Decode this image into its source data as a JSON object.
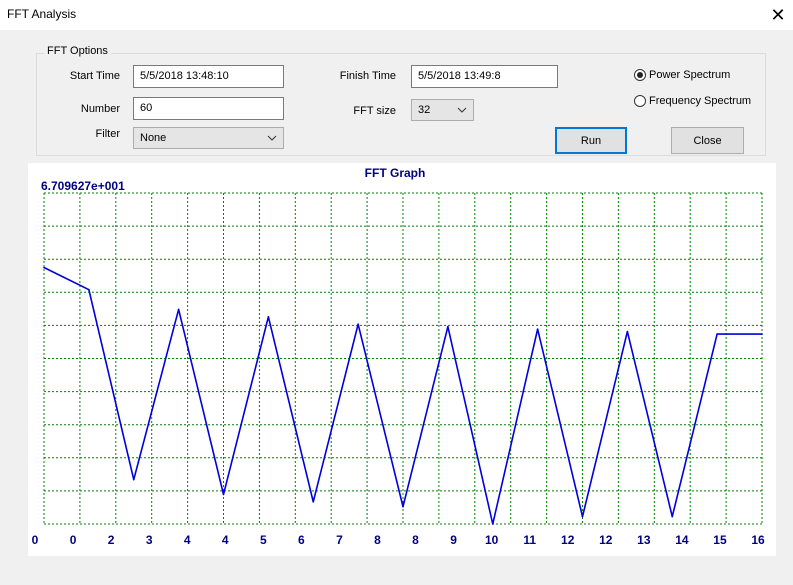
{
  "window": {
    "title": "FFT Analysis",
    "close_glyph": "✕"
  },
  "options": {
    "group_title": "FFT Options",
    "start_time_label": "Start Time",
    "start_time_value": "5/5/2018 13:48:10",
    "finish_time_label": "Finish Time",
    "finish_time_value": "5/5/2018 13:49:8",
    "number_label": "Number",
    "number_value": "60",
    "fft_size_label": "FFT size",
    "fft_size_value": "32",
    "filter_label": "Filter",
    "filter_value": "None",
    "radio_power": "Power Spectrum",
    "radio_frequency": "Frequency Spectrum",
    "selected_radio": "power",
    "run_label": "Run",
    "close_label": "Close"
  },
  "chart_data": {
    "type": "line",
    "title": "FFT Graph",
    "max_value_label": "6.709627e+001",
    "x_ticks": [
      "0",
      "0",
      "2",
      "3",
      "4",
      "4",
      "5",
      "6",
      "7",
      "8",
      "8",
      "9",
      "10",
      "11",
      "12",
      "12",
      "13",
      "14",
      "15",
      "16"
    ],
    "y_min": 0,
    "y_max": 67.09627,
    "grid": true,
    "colors": {
      "line": "#0000dd",
      "grid": "#008000",
      "text": "#000080"
    },
    "series": [
      {
        "x": [
          0,
          1,
          2,
          3,
          4,
          5,
          6,
          7,
          8,
          9,
          10,
          11,
          12,
          13,
          14,
          15,
          16
        ],
        "values": [
          52,
          47.5,
          9,
          43.5,
          6,
          42,
          4.5,
          40.5,
          3.5,
          40,
          0,
          39.5,
          1.5,
          39,
          1.5,
          38.5,
          38.5
        ]
      }
    ]
  }
}
